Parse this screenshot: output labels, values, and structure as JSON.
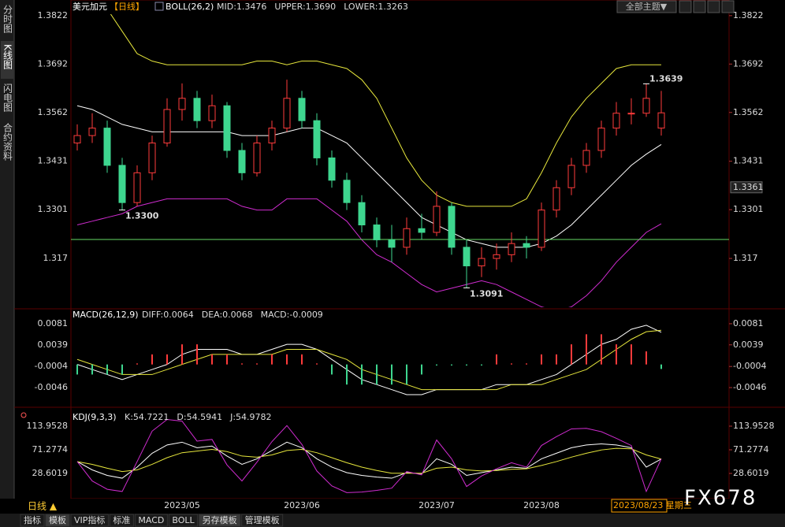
{
  "header": {
    "symbol": "美元加元",
    "period": "【日线】",
    "theme_button": "全部主题▼"
  },
  "sidebar": [
    "分时图",
    "K线图",
    "闪电图",
    "合约资料"
  ],
  "footer": {
    "period": "日线 ▲",
    "date": "2023/08/23 星期三",
    "watermark": "FX678",
    "tabs": [
      "指标",
      "模板",
      "VIP指标",
      "标准",
      "MACD",
      "BOLL",
      "另存模板",
      "管理模板"
    ]
  },
  "chart_data": [
    {
      "type": "candlestick",
      "indicator": "BOLL(26,2)",
      "up_color": "#ff3b3b",
      "down_color": "#3ed68f",
      "ylim": [
        1.3039,
        1.3864
      ],
      "yticks": [
        1.3822,
        1.3692,
        1.3562,
        1.3431,
        1.3301,
        1.317
      ],
      "last_price": 1.3361,
      "hline": 1.3221,
      "hline_color": "#66dd66",
      "annotations": [
        {
          "value": 1.3639,
          "label": "1.3639",
          "color": "#ff3b3b"
        },
        {
          "value": 1.33,
          "label": "1.3300",
          "color": "#3ed68f"
        },
        {
          "value": 1.3091,
          "label": "1.3091",
          "color": "#3ed68f"
        }
      ],
      "ohlc": [
        [
          1.348,
          1.353,
          1.346,
          1.35
        ],
        [
          1.35,
          1.356,
          1.348,
          1.352
        ],
        [
          1.352,
          1.354,
          1.34,
          1.342
        ],
        [
          1.342,
          1.344,
          1.33,
          1.332
        ],
        [
          1.332,
          1.342,
          1.331,
          1.34
        ],
        [
          1.34,
          1.35,
          1.338,
          1.348
        ],
        [
          1.348,
          1.36,
          1.347,
          1.357
        ],
        [
          1.357,
          1.364,
          1.354,
          1.36
        ],
        [
          1.36,
          1.362,
          1.352,
          1.354
        ],
        [
          1.354,
          1.361,
          1.352,
          1.358
        ],
        [
          1.358,
          1.359,
          1.344,
          1.346
        ],
        [
          1.346,
          1.348,
          1.338,
          1.34
        ],
        [
          1.34,
          1.35,
          1.339,
          1.348
        ],
        [
          1.348,
          1.354,
          1.346,
          1.352
        ],
        [
          1.352,
          1.365,
          1.351,
          1.36
        ],
        [
          1.36,
          1.362,
          1.352,
          1.354
        ],
        [
          1.354,
          1.356,
          1.342,
          1.344
        ],
        [
          1.344,
          1.346,
          1.336,
          1.338
        ],
        [
          1.338,
          1.34,
          1.33,
          1.332
        ],
        [
          1.332,
          1.334,
          1.324,
          1.326
        ],
        [
          1.326,
          1.328,
          1.32,
          1.322
        ],
        [
          1.322,
          1.326,
          1.316,
          1.32
        ],
        [
          1.32,
          1.328,
          1.318,
          1.325
        ],
        [
          1.325,
          1.329,
          1.322,
          1.324
        ],
        [
          1.324,
          1.335,
          1.323,
          1.331
        ],
        [
          1.331,
          1.332,
          1.318,
          1.32
        ],
        [
          1.32,
          1.322,
          1.3091,
          1.315
        ],
        [
          1.315,
          1.32,
          1.312,
          1.317
        ],
        [
          1.317,
          1.321,
          1.314,
          1.318
        ],
        [
          1.318,
          1.324,
          1.316,
          1.321
        ],
        [
          1.321,
          1.323,
          1.317,
          1.32
        ],
        [
          1.32,
          1.332,
          1.319,
          1.33
        ],
        [
          1.33,
          1.338,
          1.328,
          1.336
        ],
        [
          1.336,
          1.344,
          1.334,
          1.342
        ],
        [
          1.342,
          1.348,
          1.34,
          1.346
        ],
        [
          1.346,
          1.354,
          1.344,
          1.352
        ],
        [
          1.352,
          1.359,
          1.35,
          1.356
        ],
        [
          1.356,
          1.36,
          1.353,
          1.356
        ],
        [
          1.356,
          1.3639,
          1.355,
          1.36
        ],
        [
          1.352,
          1.362,
          1.35,
          1.3561
        ]
      ],
      "series": [
        {
          "name": "MID:1.3476",
          "color": "#ffffff",
          "values": [
            1.358,
            1.357,
            1.355,
            1.353,
            1.352,
            1.351,
            1.351,
            1.351,
            1.351,
            1.351,
            1.351,
            1.35,
            1.35,
            1.35,
            1.351,
            1.352,
            1.352,
            1.35,
            1.348,
            1.344,
            1.34,
            1.336,
            1.332,
            1.328,
            1.326,
            1.324,
            1.322,
            1.321,
            1.32,
            1.32,
            1.32,
            1.321,
            1.323,
            1.326,
            1.33,
            1.334,
            1.338,
            1.342,
            1.345,
            1.3476
          ]
        },
        {
          "name": "UPPER:1.3690",
          "color": "#e6e63c",
          "values": [
            1.392,
            1.388,
            1.384,
            1.378,
            1.372,
            1.37,
            1.369,
            1.369,
            1.369,
            1.369,
            1.369,
            1.369,
            1.37,
            1.37,
            1.369,
            1.37,
            1.37,
            1.369,
            1.368,
            1.365,
            1.36,
            1.352,
            1.344,
            1.338,
            1.334,
            1.332,
            1.331,
            1.331,
            1.331,
            1.331,
            1.333,
            1.34,
            1.348,
            1.355,
            1.36,
            1.364,
            1.368,
            1.369,
            1.369,
            1.369
          ]
        },
        {
          "name": "LOWER:1.3263",
          "color": "#d02cd0",
          "values": [
            1.326,
            1.327,
            1.328,
            1.329,
            1.331,
            1.332,
            1.333,
            1.333,
            1.333,
            1.333,
            1.333,
            1.331,
            1.33,
            1.33,
            1.333,
            1.333,
            1.333,
            1.33,
            1.327,
            1.322,
            1.318,
            1.316,
            1.313,
            1.31,
            1.308,
            1.309,
            1.31,
            1.311,
            1.31,
            1.308,
            1.306,
            1.304,
            1.303,
            1.304,
            1.307,
            1.311,
            1.316,
            1.32,
            1.324,
            1.3263
          ]
        }
      ]
    },
    {
      "type": "line",
      "indicator": "MACD(26,12,9)",
      "ylim": [
        -0.0082,
        0.0106
      ],
      "yticks": [
        0.0081,
        0.0039,
        -0.0004,
        -0.0046
      ],
      "series": [
        {
          "name": "DIFF:0.0064",
          "color": "#ffffff",
          "values": [
            0,
            -0.001,
            -0.002,
            -0.003,
            -0.002,
            -0.001,
            0,
            0.002,
            0.003,
            0.003,
            0.003,
            0.002,
            0.002,
            0.003,
            0.004,
            0.004,
            0.003,
            0.001,
            -0.001,
            -0.003,
            -0.004,
            -0.005,
            -0.006,
            -0.006,
            -0.005,
            -0.005,
            -0.005,
            -0.005,
            -0.004,
            -0.004,
            -0.004,
            -0.003,
            -0.002,
            0,
            0.002,
            0.004,
            0.005,
            0.007,
            0.0078,
            0.0064
          ]
        },
        {
          "name": "DEA:0.0068",
          "color": "#e6e63c",
          "values": [
            0.001,
            0,
            -0.001,
            -0.002,
            -0.002,
            -0.002,
            -0.001,
            0,
            0.001,
            0.002,
            0.002,
            0.002,
            0.002,
            0.002,
            0.003,
            0.003,
            0.003,
            0.002,
            0.001,
            -0.001,
            -0.002,
            -0.003,
            -0.004,
            -0.005,
            -0.005,
            -0.005,
            -0.005,
            -0.005,
            -0.005,
            -0.004,
            -0.004,
            -0.004,
            -0.003,
            -0.002,
            -0.001,
            0.001,
            0.003,
            0.005,
            0.0065,
            0.0068
          ]
        },
        {
          "name": "MACD:-0.0009",
          "color": "#d02cd0",
          "kind": "bar",
          "up_color": "#ff3b3b",
          "down_color": "#3ed68f",
          "values": [
            -0.002,
            -0.002,
            -0.002,
            -0.002,
            0.0002,
            0.002,
            0.002,
            0.004,
            0.004,
            0.002,
            0.002,
            0.0002,
            0.0002,
            0.002,
            0.002,
            0.002,
            0.0002,
            -0.002,
            -0.004,
            -0.004,
            -0.004,
            -0.004,
            -0.004,
            -0.002,
            -0.0002,
            -0.0002,
            -0.0002,
            -0.0002,
            0.002,
            0.0002,
            0.0002,
            0.002,
            0.002,
            0.004,
            0.006,
            0.006,
            0.004,
            0.004,
            0.0026,
            -0.0009
          ]
        }
      ]
    },
    {
      "type": "line",
      "indicator": "KDJ(9,3,3)",
      "ylim": [
        -15.5,
        143.8
      ],
      "yticks": [
        113.9528,
        71.2774,
        28.6019
      ],
      "categories": [
        null,
        null,
        null,
        null,
        null,
        null,
        null,
        "2023/05",
        null,
        null,
        null,
        null,
        null,
        null,
        null,
        "2023/06",
        null,
        null,
        null,
        null,
        null,
        null,
        null,
        null,
        "2023/07",
        null,
        null,
        null,
        null,
        null,
        null,
        "2023/08",
        null,
        null,
        null,
        null,
        null,
        null,
        null,
        null
      ],
      "series": [
        {
          "name": "K:54.7221",
          "color": "#ffffff",
          "values": [
            50,
            35,
            25,
            20,
            40,
            65,
            80,
            85,
            75,
            78,
            60,
            45,
            55,
            70,
            85,
            75,
            55,
            40,
            30,
            25,
            22,
            20,
            30,
            28,
            55,
            45,
            25,
            30,
            35,
            40,
            38,
            55,
            65,
            75,
            80,
            82,
            80,
            75,
            40,
            54.7221
          ]
        },
        {
          "name": "D:54.5941",
          "color": "#e6e63c",
          "values": [
            50,
            45,
            38,
            32,
            35,
            45,
            57,
            66,
            69,
            72,
            68,
            60,
            58,
            62,
            70,
            72,
            66,
            57,
            48,
            40,
            34,
            29,
            29,
            29,
            38,
            40,
            35,
            33,
            34,
            36,
            37,
            43,
            50,
            58,
            65,
            71,
            74,
            73,
            62,
            54.5941
          ]
        },
        {
          "name": "J:54.9782",
          "color": "#d02cd0",
          "values": [
            50,
            15,
            0,
            -4,
            50,
            105,
            126,
            123,
            87,
            90,
            44,
            15,
            49,
            86,
            115,
            81,
            33,
            6,
            -6,
            -5,
            -2,
            2,
            32,
            26,
            89,
            55,
            5,
            24,
            37,
            48,
            40,
            79,
            95,
            109,
            110,
            104,
            92,
            79,
            -4,
            54.9782
          ]
        }
      ]
    }
  ]
}
